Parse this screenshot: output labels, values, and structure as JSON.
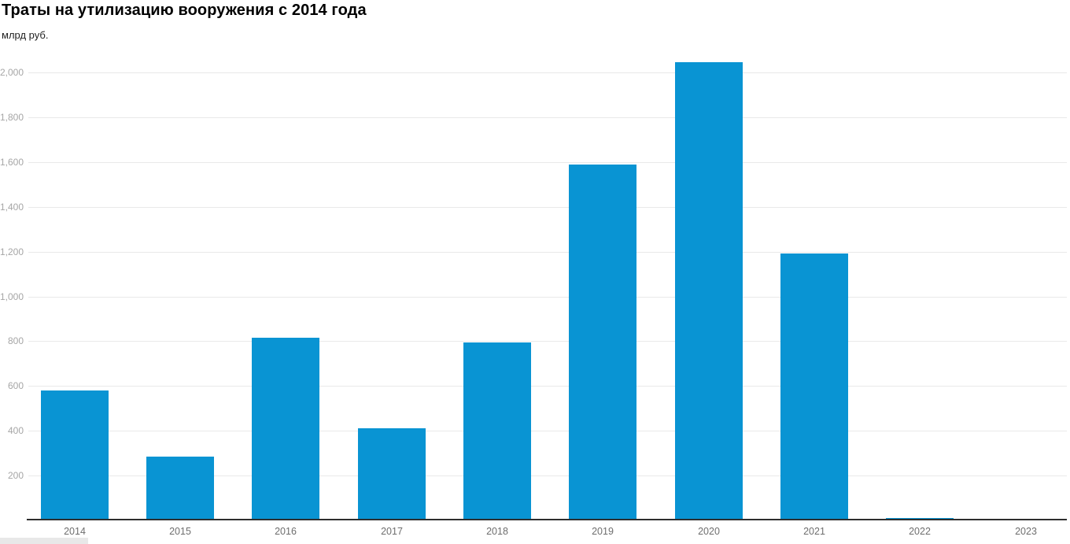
{
  "page": {
    "title": "Траты на утилизацию вооружения с 2014 года",
    "unit_label": "млрд руб."
  },
  "chart_data": {
    "type": "bar",
    "title": "Траты на утилизацию вооружения с 2014 года",
    "subtitle": "млрд руб.",
    "xlabel": "",
    "ylabel": "млрд руб.",
    "categories": [
      "2014",
      "2015",
      "2016",
      "2017",
      "2018",
      "2019",
      "2020",
      "2021",
      "2022",
      "2023"
    ],
    "values": [
      580,
      285,
      815,
      410,
      795,
      1590,
      2045,
      1190,
      10,
      0
    ],
    "yticks": [
      200,
      400,
      600,
      800,
      1000,
      1200,
      1400,
      1600,
      1800,
      2000
    ],
    "ytick_labels": [
      "200",
      "400",
      "600",
      "800",
      "1,000",
      "1,200",
      "1,400",
      "1,600",
      "1,800",
      "2,000"
    ],
    "ylim": [
      0,
      2080
    ],
    "grid": "horizontal-only",
    "legend": "none",
    "colors": {
      "bar": "#0994d3",
      "axis_line": "#2e2e2e",
      "gridline": "#e9e9e9",
      "ytick_text": "#a6a6a6",
      "xtick_text": "#6e6e6e"
    }
  }
}
